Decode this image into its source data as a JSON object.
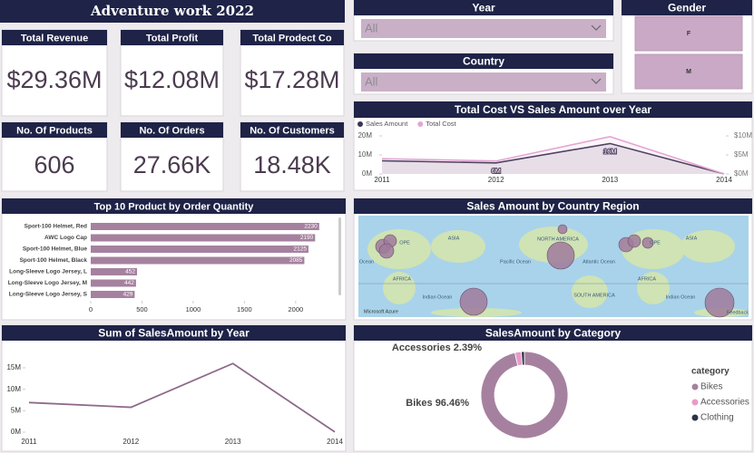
{
  "title": "Adventure work 2022",
  "kpis": [
    {
      "label": "Total Revenue",
      "value": "$29.36M"
    },
    {
      "label": "Total Profit",
      "value": "$12.08M"
    },
    {
      "label": "Total Prodect Co",
      "value": "$17.28M"
    },
    {
      "label": "No. Of Products",
      "value": "606"
    },
    {
      "label": "No. Of Orders",
      "value": "27.66K"
    },
    {
      "label": "No. Of Customers",
      "value": "18.48K"
    }
  ],
  "slicers": [
    {
      "title": "Year",
      "selection": "All"
    },
    {
      "title": "Country",
      "selection": "All"
    }
  ],
  "gender": {
    "title": "Gender",
    "options": [
      "F",
      "M"
    ]
  },
  "map": {
    "title": "Sales Amount by Country Region",
    "labels": [
      "OPE",
      "ASIA",
      "NORTH AMERICA",
      "OPE",
      "ASIA",
      "Ocean",
      "Pacific Ocean",
      "Atlantic Ocean",
      "AFRICA",
      "Indian Ocean",
      "SOUTH AMERICA",
      "AFRICA",
      "Indian Ocean",
      "Microsoft Azure",
      "Feedback"
    ]
  },
  "chart_data": [
    {
      "type": "line",
      "title": "Total Cost VS Sales Amount over Year",
      "x": [
        2011,
        2012,
        2013,
        2014
      ],
      "series": [
        {
          "name": "Sales Amount",
          "color": "#3b3552",
          "values": [
            6900000,
            5800000,
            16000000,
            50000
          ],
          "value_labels": [
            null,
            "6M",
            "16M",
            null
          ]
        },
        {
          "name": "Total Cost",
          "color": "#e3a6d2",
          "axis": "y2",
          "values": [
            4000000,
            3400000,
            9800000,
            30000
          ]
        }
      ],
      "ylim": [
        0,
        20000000
      ],
      "yticks": [
        {
          "value": 0,
          "label": "0M"
        },
        {
          "value": 10000000,
          "label": "10M"
        },
        {
          "value": 20000000,
          "label": "20M"
        }
      ],
      "y2lim": [
        0,
        10000000
      ],
      "y2ticks": [
        {
          "value": 0,
          "label": "$0M"
        },
        {
          "value": 5000000,
          "label": "$5M"
        },
        {
          "value": 10000000,
          "label": "$10M"
        }
      ]
    },
    {
      "type": "bar",
      "orientation": "horizontal",
      "title": "Top 10 Product by Order Quantity",
      "categories": [
        "Sport-100 Helmet, Red",
        "AWC Logo Cap",
        "Sport-100 Helmet, Blue",
        "Sport-100 Helmet, Black",
        "Long-Sleeve Logo Jersey, L",
        "Long-Sleeve Logo Jersey, M",
        "Long-Sleeve Logo Jersey, S"
      ],
      "values": [
        2230,
        2190,
        2125,
        2085,
        452,
        442,
        429
      ],
      "color": "#a5819f",
      "xlim": [
        0,
        2400
      ],
      "xticks": [
        0,
        500,
        1000,
        1500,
        2000
      ]
    },
    {
      "type": "line",
      "title": "Sum of SalesAmount by Year",
      "x": [
        2011,
        2012,
        2013,
        2014
      ],
      "values": [
        6900000,
        5800000,
        16000000,
        50000
      ],
      "color": "#8e6a8a",
      "ylim": [
        0,
        17000000
      ],
      "yticks": [
        {
          "value": 0,
          "label": "0M"
        },
        {
          "value": 5000000,
          "label": "5M"
        },
        {
          "value": 10000000,
          "label": "10M"
        },
        {
          "value": 15000000,
          "label": "15M"
        }
      ]
    },
    {
      "type": "pie",
      "donut": true,
      "title": "SalesAmount by Category",
      "categories": [
        "Bikes",
        "Accessories",
        "Clothing"
      ],
      "values": [
        96.46,
        2.39,
        1.15
      ],
      "value_labels": [
        "Bikes 96.46%",
        "Accessories 2.39%",
        null
      ],
      "colors": [
        "#a5819f",
        "#e79bc9",
        "#2d3447"
      ],
      "legend_title": "category"
    }
  ]
}
